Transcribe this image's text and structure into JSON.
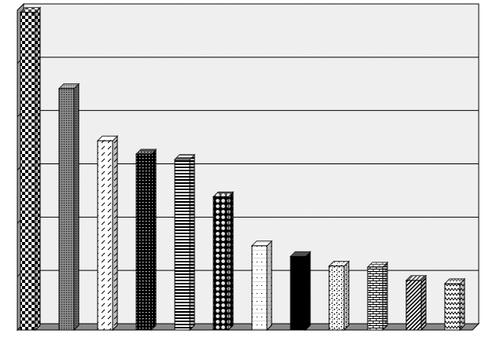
{
  "chart_data": {
    "type": "bar",
    "style": "3d-patterned-bars",
    "grid": true,
    "legend": "none",
    "ylim": [
      0,
      6
    ],
    "values": [
      5.96,
      4.53,
      3.55,
      3.3,
      3.2,
      2.5,
      1.58,
      1.38,
      1.2,
      1.18,
      0.93,
      0.87
    ],
    "colors": {
      "background": "#f1f1f1",
      "wall": "#9b9b9b",
      "grid": "#000000",
      "bar_outline": "#000000"
    },
    "patterns": [
      "checker",
      "dense-dots",
      "diagonal-dashes",
      "dotted-dark",
      "horizontal-stripes",
      "circles",
      "sparse-dots",
      "solid-black",
      "speckle",
      "bricks",
      "diagonal-stripes",
      "zigzag"
    ]
  }
}
